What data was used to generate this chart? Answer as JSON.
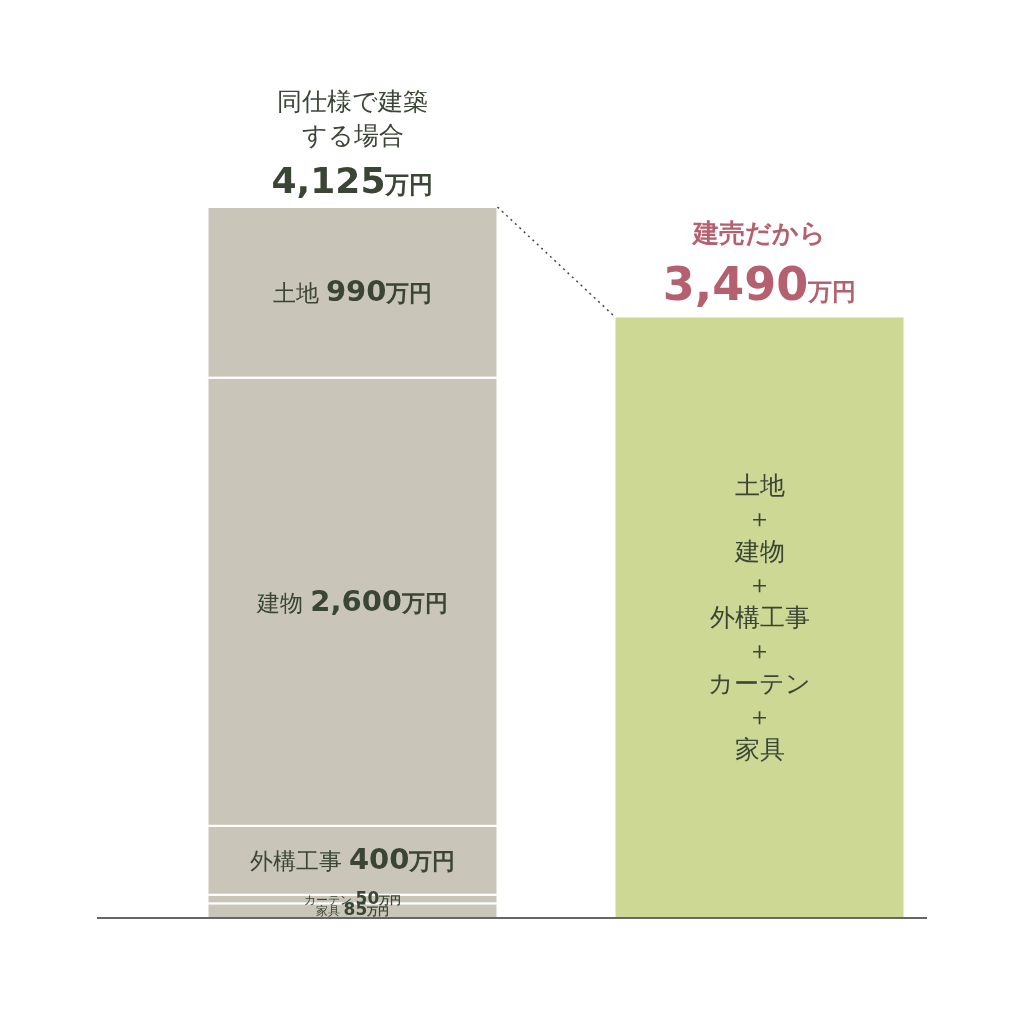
{
  "chart_data": {
    "type": "bar",
    "stacked": true,
    "categories": [
      null,
      null
    ],
    "annotations": [
      "同仕様で建築する場合",
      "建売だから"
    ],
    "series": [
      {
        "name": "家具",
        "color": "#c9c5b9",
        "values": [
          85,
          null
        ],
        "value_labels": [
          "85万円",
          null
        ]
      },
      {
        "name": "カーテン",
        "color": "#c9c5b9",
        "values": [
          50,
          null
        ],
        "value_labels": [
          "50万円",
          null
        ]
      },
      {
        "name": "外構工事",
        "color": "#c9c5b9",
        "values": [
          400,
          null
        ],
        "value_labels": [
          "400万円",
          null
        ]
      },
      {
        "name": "建物",
        "color": "#c9c5b9",
        "values": [
          2600,
          null
        ],
        "value_labels": [
          "2,600万円",
          null
        ]
      },
      {
        "name": "土地",
        "color": "#c9c5b9",
        "values": [
          990,
          null
        ],
        "value_labels": [
          "990万円",
          null
        ]
      },
      {
        "name": "土地＋建物＋外構工事＋カーテン＋家具",
        "color": "#ccd893",
        "values": [
          null,
          3490
        ]
      }
    ],
    "totals": [
      "4,125万円",
      "3,490万円"
    ]
  }
}
